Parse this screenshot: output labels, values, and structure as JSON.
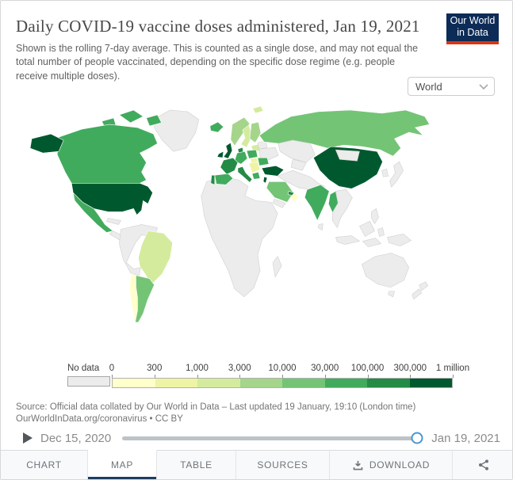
{
  "header": {
    "title": "Daily COVID-19 vaccine doses administered, Jan 19, 2021",
    "subtitle": "Shown is the rolling 7-day average. This is counted as a single dose, and may not equal the total number of people vaccinated, depending on the specific dose regime (e.g. people receive multiple doses).",
    "logo": {
      "line1": "Our World",
      "line2": "in Data",
      "bg_color": "#0d2b57",
      "accent_color": "#dc3412"
    }
  },
  "controls": {
    "region_selector": {
      "value": "World"
    }
  },
  "chart_data": {
    "type": "heatmap",
    "subtype": "choropleth-world-map",
    "title": "Daily COVID-19 vaccine doses administered, Jan 19, 2021",
    "unit": "doses per day (rolling 7-day average)",
    "legend": {
      "no_data_label": "No data",
      "no_data_color": "#ececec",
      "tick_labels": [
        "0",
        "300",
        "1,000",
        "3,000",
        "10,000",
        "30,000",
        "100,000",
        "300,000",
        "1 million"
      ],
      "bin_labels": [
        "0–300",
        "300–1,000",
        "1,000–3,000",
        "3,000–10,000",
        "10,000–30,000",
        "30,000–100,000",
        "100,000–300,000",
        "300,000–1 million"
      ],
      "bin_colors": [
        "#ffffcc",
        "#eef4a4",
        "#d4eb9e",
        "#a5d58a",
        "#74c476",
        "#41ab5d",
        "#238b45",
        "#00592e"
      ]
    },
    "countries": {
      "usa": {
        "name": "United States",
        "bin": 7
      },
      "canada": {
        "name": "Canada",
        "bin": 5
      },
      "mexico": {
        "name": "Mexico",
        "bin": 5
      },
      "greenland": {
        "name": "Greenland",
        "bin": -1
      },
      "central-america": {
        "name": "Central America",
        "bin": -1
      },
      "costa-rica": {
        "name": "Costa Rica",
        "bin": 0
      },
      "cuba": {
        "name": "Cuba",
        "bin": -1
      },
      "south-america-west": {
        "name": "Northwestern South America",
        "bin": -1
      },
      "brazil": {
        "name": "Brazil",
        "bin": 2
      },
      "chile": {
        "name": "Chile",
        "bin": 0
      },
      "argentina": {
        "name": "Argentina",
        "bin": 4
      },
      "africa": {
        "name": "Africa",
        "bin": -1
      },
      "madagascar": {
        "name": "Madagascar",
        "bin": -1
      },
      "svalbard": {
        "name": "Svalbard",
        "bin": 2
      },
      "iceland": {
        "name": "Iceland",
        "bin": 5
      },
      "norway": {
        "name": "Norway",
        "bin": 3
      },
      "sweden": {
        "name": "Sweden",
        "bin": 2
      },
      "finland": {
        "name": "Finland",
        "bin": 3
      },
      "baltics": {
        "name": "Baltic states",
        "bin": 2
      },
      "denmark": {
        "name": "Denmark",
        "bin": 6
      },
      "ireland": {
        "name": "Ireland",
        "bin": 7
      },
      "uk": {
        "name": "United Kingdom",
        "bin": 7
      },
      "germany": {
        "name": "Germany",
        "bin": 5
      },
      "poland": {
        "name": "Poland",
        "bin": 5
      },
      "belarus": {
        "name": "Belarus",
        "bin": -1
      },
      "ukraine": {
        "name": "Ukraine",
        "bin": -1
      },
      "france": {
        "name": "France",
        "bin": 6
      },
      "portugal": {
        "name": "Portugal",
        "bin": 6
      },
      "spain": {
        "name": "Spain",
        "bin": 5
      },
      "italy": {
        "name": "Italy",
        "bin": 6
      },
      "hungary": {
        "name": "Hungary",
        "bin": 1
      },
      "balkans": {
        "name": "Balkans",
        "bin": 1
      },
      "romania": {
        "name": "Romania",
        "bin": 5
      },
      "greece": {
        "name": "Greece",
        "bin": 5
      },
      "russia": {
        "name": "Russia",
        "bin": 4
      },
      "kazakhstan": {
        "name": "Kazakhstan",
        "bin": -1
      },
      "central-asia": {
        "name": "Central Asia",
        "bin": -1
      },
      "turkey": {
        "name": "Turkey",
        "bin": 7
      },
      "middle-east": {
        "name": "Iran / Iraq / Afghanistan / Pakistan",
        "bin": -1
      },
      "israel": {
        "name": "Israel",
        "bin": 7
      },
      "saudi-arabia": {
        "name": "Saudi Arabia",
        "bin": 4
      },
      "uae": {
        "name": "United Arab Emirates",
        "bin": 6
      },
      "oman": {
        "name": "Oman",
        "bin": 0
      },
      "yemen": {
        "name": "Yemen",
        "bin": -1
      },
      "india": {
        "name": "India",
        "bin": 5
      },
      "sri-lanka": {
        "name": "Sri Lanka",
        "bin": -1
      },
      "myanmar": {
        "name": "Myanmar",
        "bin": 5
      },
      "se-asia": {
        "name": "Mainland Southeast Asia",
        "bin": -1
      },
      "china": {
        "name": "China",
        "bin": 7
      },
      "mongolia": {
        "name": "Mongolia",
        "bin": -1
      },
      "korea": {
        "name": "South Korea",
        "bin": -1
      },
      "japan": {
        "name": "Japan",
        "bin": -1
      },
      "philippines": {
        "name": "Philippines",
        "bin": -1
      },
      "indonesia": {
        "name": "Indonesia",
        "bin": -1
      },
      "new-guinea": {
        "name": "Papua New Guinea",
        "bin": -1
      },
      "australia": {
        "name": "Australia",
        "bin": -1
      },
      "new-zealand": {
        "name": "New Zealand",
        "bin": -1
      }
    }
  },
  "source": {
    "line1": "Source: Official data collated by Our World in Data – Last updated 19 January, 19:10 (London time)",
    "line2": "OurWorldInData.org/coronavirus • CC BY"
  },
  "timeline": {
    "start_label": "Dec 15, 2020",
    "end_label": "Jan 19, 2021",
    "progress_pct": 99
  },
  "footer": {
    "tabs": [
      {
        "label": "CHART",
        "active": false
      },
      {
        "label": "MAP",
        "active": true
      },
      {
        "label": "TABLE",
        "active": false
      },
      {
        "label": "SOURCES",
        "active": false
      },
      {
        "label": "DOWNLOAD",
        "active": false
      }
    ]
  }
}
